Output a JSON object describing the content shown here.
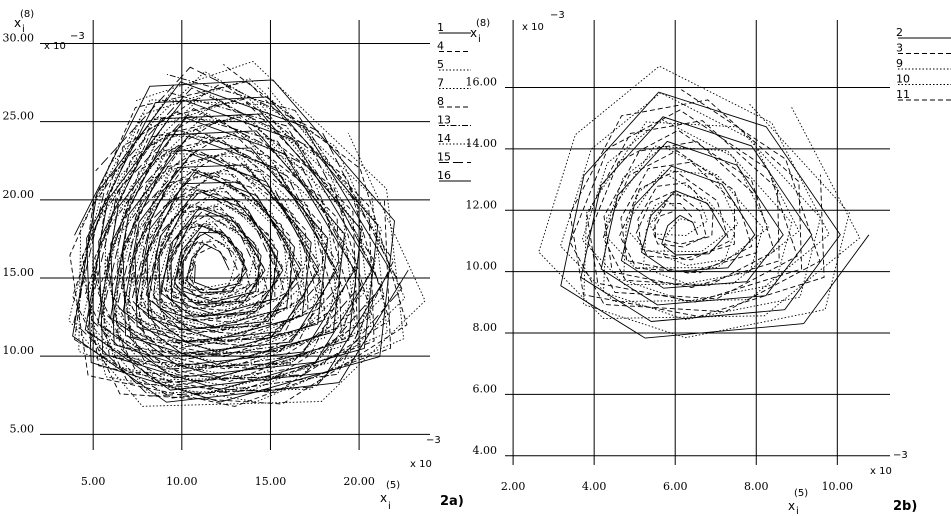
{
  "chart_data": [
    {
      "type": "line",
      "panel_label": "2a)",
      "ylabel": {
        "base": "x",
        "sub": "i",
        "sup": "(8)"
      },
      "xlabel": {
        "base": "x",
        "sub": "i",
        "sup": "(5)"
      },
      "y_multiplier": {
        "base": "x 10",
        "exp": "−3"
      },
      "x_multiplier": {
        "base": "x 10",
        "exp": "−3"
      },
      "xlim": [
        2.0,
        24.0
      ],
      "ylim": [
        4.0,
        31.5
      ],
      "x_ticks": [
        5,
        10,
        15,
        20
      ],
      "x_tick_labels": [
        "5.00",
        "10.00",
        "15.00",
        "20.00"
      ],
      "y_ticks": [
        5,
        10,
        15,
        20,
        25,
        30
      ],
      "y_tick_labels": [
        "5.00",
        "10.00",
        "15.00",
        "20.00",
        "25.00",
        "30.00"
      ],
      "grid": true,
      "legend_placement": "right",
      "series": [
        {
          "name": "1",
          "dash": "solid",
          "center": [
            11.5,
            15.5
          ],
          "r0": 1.0,
          "r1": 9.6,
          "turns": 10
        },
        {
          "name": "4",
          "dash": "dashed",
          "center": [
            11.3,
            15.6
          ],
          "r0": 1.2,
          "r1": 9.9,
          "turns": 10
        },
        {
          "name": "5",
          "dash": "dotted",
          "center": [
            11.8,
            15.3
          ],
          "r0": 1.5,
          "r1": 10.2,
          "turns": 9
        },
        {
          "name": "7",
          "dash": "dotted",
          "center": [
            11.0,
            15.8
          ],
          "r0": 1.1,
          "r1": 9.4,
          "turns": 9
        },
        {
          "name": "8",
          "dash": "dashed",
          "center": [
            11.6,
            15.2
          ],
          "r0": 1.3,
          "r1": 9.8,
          "turns": 10
        },
        {
          "name": "13",
          "dash": "dashdot",
          "center": [
            11.2,
            15.5
          ],
          "r0": 1.4,
          "r1": 9.5,
          "turns": 9
        },
        {
          "name": "14",
          "dash": "dotted",
          "center": [
            11.9,
            15.7
          ],
          "r0": 1.6,
          "r1": 10.0,
          "turns": 10
        },
        {
          "name": "15",
          "dash": "longdash",
          "center": [
            11.4,
            15.4
          ],
          "r0": 1.0,
          "r1": 9.7,
          "turns": 9
        },
        {
          "name": "16",
          "dash": "solid",
          "center": [
            11.7,
            15.6
          ],
          "r0": 1.2,
          "r1": 9.9,
          "turns": 10
        }
      ]
    },
    {
      "type": "line",
      "panel_label": "2b)",
      "ylabel": {
        "base": "x",
        "sub": "i",
        "sup": "(8)"
      },
      "xlabel": {
        "base": "x",
        "sub": "i",
        "sup": "(5)"
      },
      "y_multiplier": {
        "base": "x 10",
        "exp": "−3"
      },
      "x_multiplier": {
        "base": "x 10",
        "exp": "−3"
      },
      "xlim": [
        1.8,
        11.3
      ],
      "ylim": [
        3.7,
        18.2
      ],
      "x_ticks": [
        2,
        4,
        6,
        8,
        10
      ],
      "x_tick_labels": [
        "2.00",
        "4.00",
        "6.00",
        "8.00",
        "10.00"
      ],
      "y_ticks": [
        4,
        6,
        8,
        10,
        12,
        14,
        16
      ],
      "y_tick_labels": [
        "4.00",
        "6.00",
        "8.00",
        "10.00",
        "12.00",
        "14.00",
        "16.00"
      ],
      "grid": true,
      "legend_placement": "right",
      "series": [
        {
          "name": "2",
          "dash": "solid",
          "center": [
            6.2,
            11.2
          ],
          "r0": 0.3,
          "r1": 3.9,
          "turns": 6
        },
        {
          "name": "3",
          "dash": "dashed",
          "center": [
            6.0,
            11.6
          ],
          "r0": 0.4,
          "r1": 3.5,
          "turns": 6
        },
        {
          "name": "9",
          "dash": "dotted",
          "center": [
            5.8,
            11.8
          ],
          "r0": 0.3,
          "r1": 4.1,
          "turns": 6
        },
        {
          "name": "10",
          "dash": "dotted",
          "center": [
            6.3,
            11.0
          ],
          "r0": 0.5,
          "r1": 3.7,
          "turns": 5
        },
        {
          "name": "11",
          "dash": "dashed",
          "center": [
            5.9,
            11.4
          ],
          "r0": 0.4,
          "r1": 3.3,
          "turns": 6
        }
      ]
    }
  ]
}
